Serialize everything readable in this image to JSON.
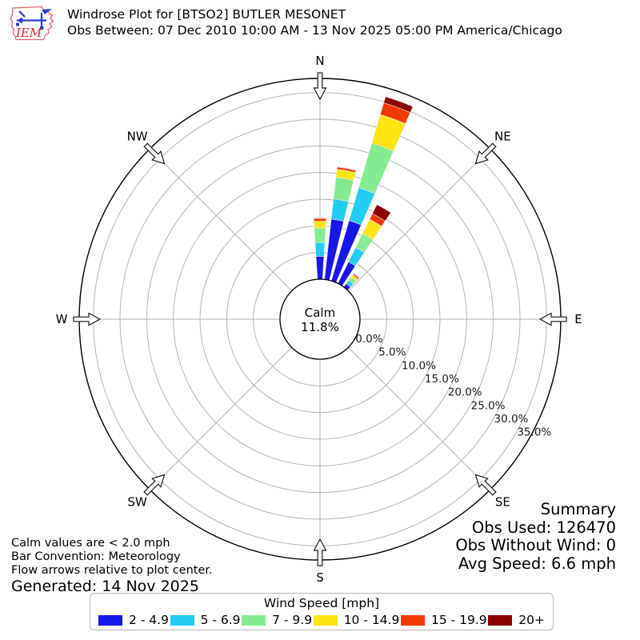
{
  "header": {
    "logo_text": "IEM",
    "title": "Windrose Plot for [BTSO2] BUTLER MESONET",
    "subtitle": "Obs Between: 07 Dec 2010 10:00 AM - 13 Nov 2025 05:00 PM America/Chicago"
  },
  "chart_data": {
    "type": "windrose (polar stacked bar)",
    "title": "Windrose Plot for [BTSO2] BUTLER MESONET",
    "units": "percent frequency by wind speed bin [mph]",
    "bar_convention": "Meteorology",
    "direction_sector_width_deg": 10,
    "compass_labels": [
      "N",
      "NE",
      "E",
      "SE",
      "S",
      "SW",
      "W",
      "NW"
    ],
    "rings_pct": [
      0,
      5,
      10,
      15,
      20,
      25,
      30,
      35
    ],
    "ring_labels": [
      "0.0%",
      "5.0%",
      "10.0%",
      "15.0%",
      "20.0%",
      "25.0%",
      "30.0%",
      "35.0%"
    ],
    "calm": {
      "label": "Calm",
      "pct_label": "11.8%",
      "pct": 11.8,
      "threshold": "< 2.0 mph"
    },
    "speed_bins": [
      {
        "label": "2 - 4.9",
        "color": "#1717e8"
      },
      {
        "label": "5 - 6.9",
        "color": "#22ccf2"
      },
      {
        "label": "7 - 9.9",
        "color": "#84ec8e"
      },
      {
        "label": "10 - 14.9",
        "color": "#ffe414"
      },
      {
        "label": "15 - 19.9",
        "color": "#f13a00"
      },
      {
        "label": "20+",
        "color": "#8b0000"
      }
    ],
    "petals": [
      {
        "direction_deg": 0,
        "stack_pct": [
          4.3,
          2.6,
          2.7,
          1.3,
          0.5,
          0.1
        ]
      },
      {
        "direction_deg": 10,
        "stack_pct": [
          11.4,
          3.8,
          4.1,
          1.5,
          0.4,
          0.1
        ]
      },
      {
        "direction_deg": 20,
        "stack_pct": [
          11.8,
          6.4,
          8.7,
          5.6,
          2.3,
          1.2
        ]
      },
      {
        "direction_deg": 30,
        "stack_pct": [
          4.5,
          3.0,
          2.9,
          3.0,
          1.2,
          1.9
        ]
      },
      {
        "direction_deg": 40,
        "stack_pct": [
          0.8,
          0.8,
          0.7,
          0.5,
          0.25,
          0.15
        ]
      }
    ]
  },
  "summary": {
    "heading": "Summary",
    "lines": [
      "Obs Used: 126470",
      "Obs Without Wind: 0",
      "Avg Speed: 6.6 mph"
    ]
  },
  "footnotes": {
    "lines": [
      "Calm values are < 2.0 mph",
      "Bar Convention: Meteorology",
      "Flow arrows relative to plot center."
    ],
    "generated": "Generated: 14 Nov 2025"
  },
  "legend": {
    "title": "Wind Speed [mph]"
  }
}
